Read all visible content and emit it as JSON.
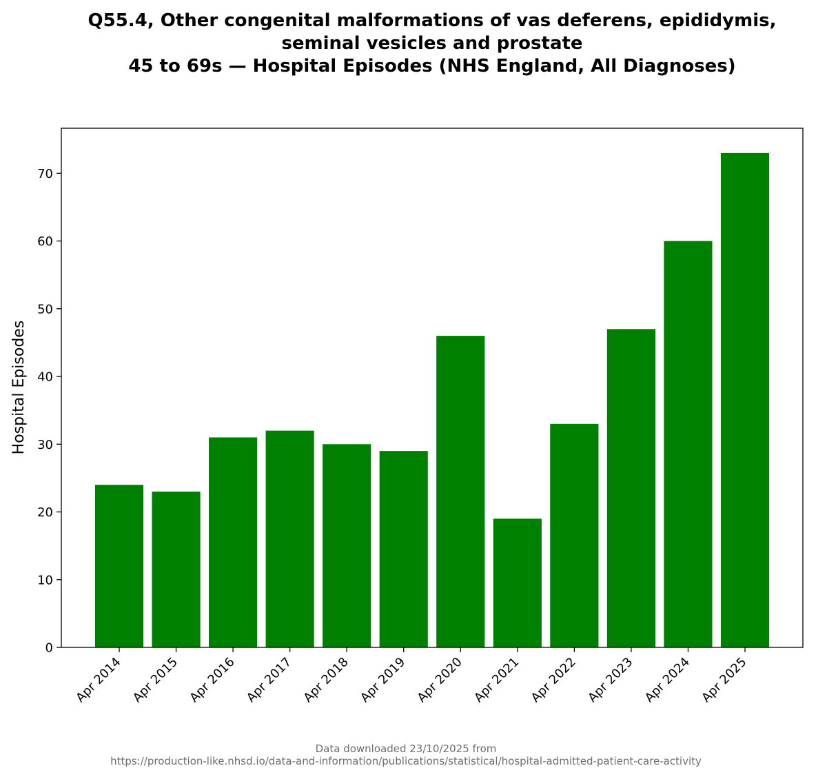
{
  "chart_data": {
    "type": "bar",
    "title_lines": [
      "Q55.4, Other congenital malformations of vas deferens, epididymis,",
      "seminal vesicles and prostate",
      "45 to 69s — Hospital Episodes (NHS England, All Diagnoses)"
    ],
    "xlabel": "",
    "ylabel": "Hospital Episodes",
    "categories": [
      "Apr 2014",
      "Apr 2015",
      "Apr 2016",
      "Apr 2017",
      "Apr 2018",
      "Apr 2019",
      "Apr 2020",
      "Apr 2021",
      "Apr 2022",
      "Apr 2023",
      "Apr 2024",
      "Apr 2025"
    ],
    "values": [
      24,
      23,
      31,
      32,
      30,
      29,
      46,
      19,
      33,
      47,
      60,
      73
    ],
    "ylim": [
      0,
      76.65
    ],
    "yticks": [
      0,
      10,
      20,
      30,
      40,
      50,
      60,
      70
    ],
    "bar_color": "#008000",
    "grid": false,
    "legend": "none"
  },
  "footnote": {
    "line1": "Data downloaded 23/10/2025 from",
    "line2": "https://production-like.nhsd.io/data-and-information/publications/statistical/hospital-admitted-patient-care-activity"
  }
}
